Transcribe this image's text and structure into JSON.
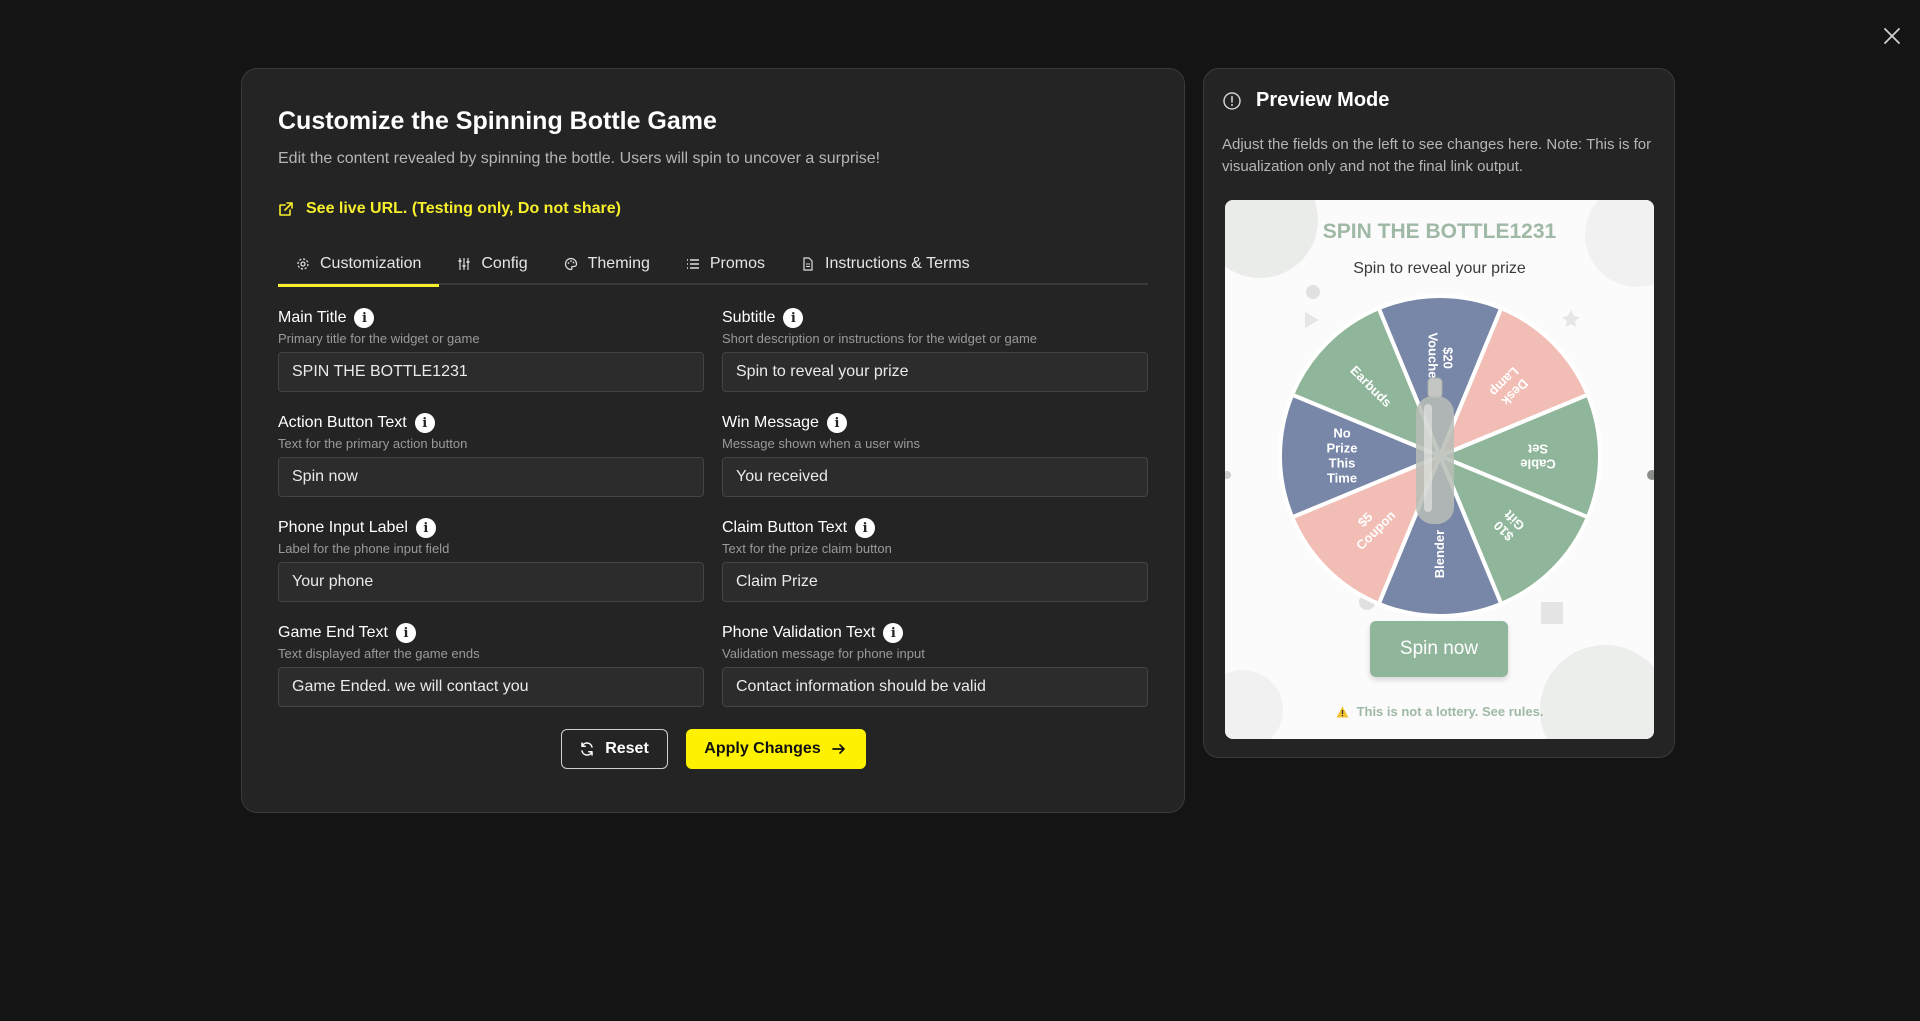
{
  "close_icon": "close-icon",
  "editor": {
    "title": "Customize the Spinning Bottle Game",
    "description": "Edit the content revealed by spinning the bottle. Users will spin to uncover a surprise!",
    "live_url": "See live URL. (Testing only, Do not share)",
    "tabs": [
      {
        "label": "Customization",
        "icon": "gear-icon",
        "active": true
      },
      {
        "label": "Config",
        "icon": "sliders-icon",
        "active": false
      },
      {
        "label": "Theming",
        "icon": "palette-icon",
        "active": false
      },
      {
        "label": "Promos",
        "icon": "list-icon",
        "active": false
      },
      {
        "label": "Instructions & Terms",
        "icon": "document-icon",
        "active": false
      }
    ],
    "fields": [
      {
        "label": "Main Title",
        "help": "Primary title for the widget or game",
        "value": "SPIN THE BOTTLE1231"
      },
      {
        "label": "Subtitle",
        "help": "Short description or instructions for the widget or game",
        "value": "Spin to reveal your prize"
      },
      {
        "label": "Action Button Text",
        "help": "Text for the primary action button",
        "value": "Spin now"
      },
      {
        "label": "Win Message",
        "help": "Message shown when a user wins",
        "value": "You received"
      },
      {
        "label": "Phone Input Label",
        "help": "Label for the phone input field",
        "value": "Your phone"
      },
      {
        "label": "Claim Button Text",
        "help": "Text for the prize claim button",
        "value": "Claim Prize"
      },
      {
        "label": "Game End Text",
        "help": "Text displayed after the game ends",
        "value": "Game Ended. we will contact you"
      },
      {
        "label": "Phone Validation Text",
        "help": "Validation message for phone input",
        "value": "Contact information should be valid"
      }
    ],
    "reset_label": "Reset",
    "apply_label": "Apply Changes"
  },
  "preview": {
    "title": "Preview Mode",
    "description": "Adjust the fields on the left to see changes here. Note: This is for visualization only and not the final link output.",
    "game": {
      "title": "SPIN THE BOTTLE1231",
      "subtitle": "Spin to reveal your prize",
      "segments": [
        {
          "label": "Earbuds",
          "color": "#8fb59a"
        },
        {
          "label": "$20 Voucher",
          "color": "#7886a8"
        },
        {
          "label": "Desk Lamp",
          "color": "#f2bdb4"
        },
        {
          "label": "Cable Set",
          "color": "#8fb59a"
        },
        {
          "label": "$10 Gift",
          "color": "#8fb59a"
        },
        {
          "label": "Blender",
          "color": "#7886a8"
        },
        {
          "label": "$5 Coupon",
          "color": "#f2bdb4"
        },
        {
          "label": "No Prize This Time",
          "color": "#7886a8"
        }
      ],
      "spin_label": "Spin now",
      "lottery_note": "This is not a lottery. See rules."
    }
  }
}
